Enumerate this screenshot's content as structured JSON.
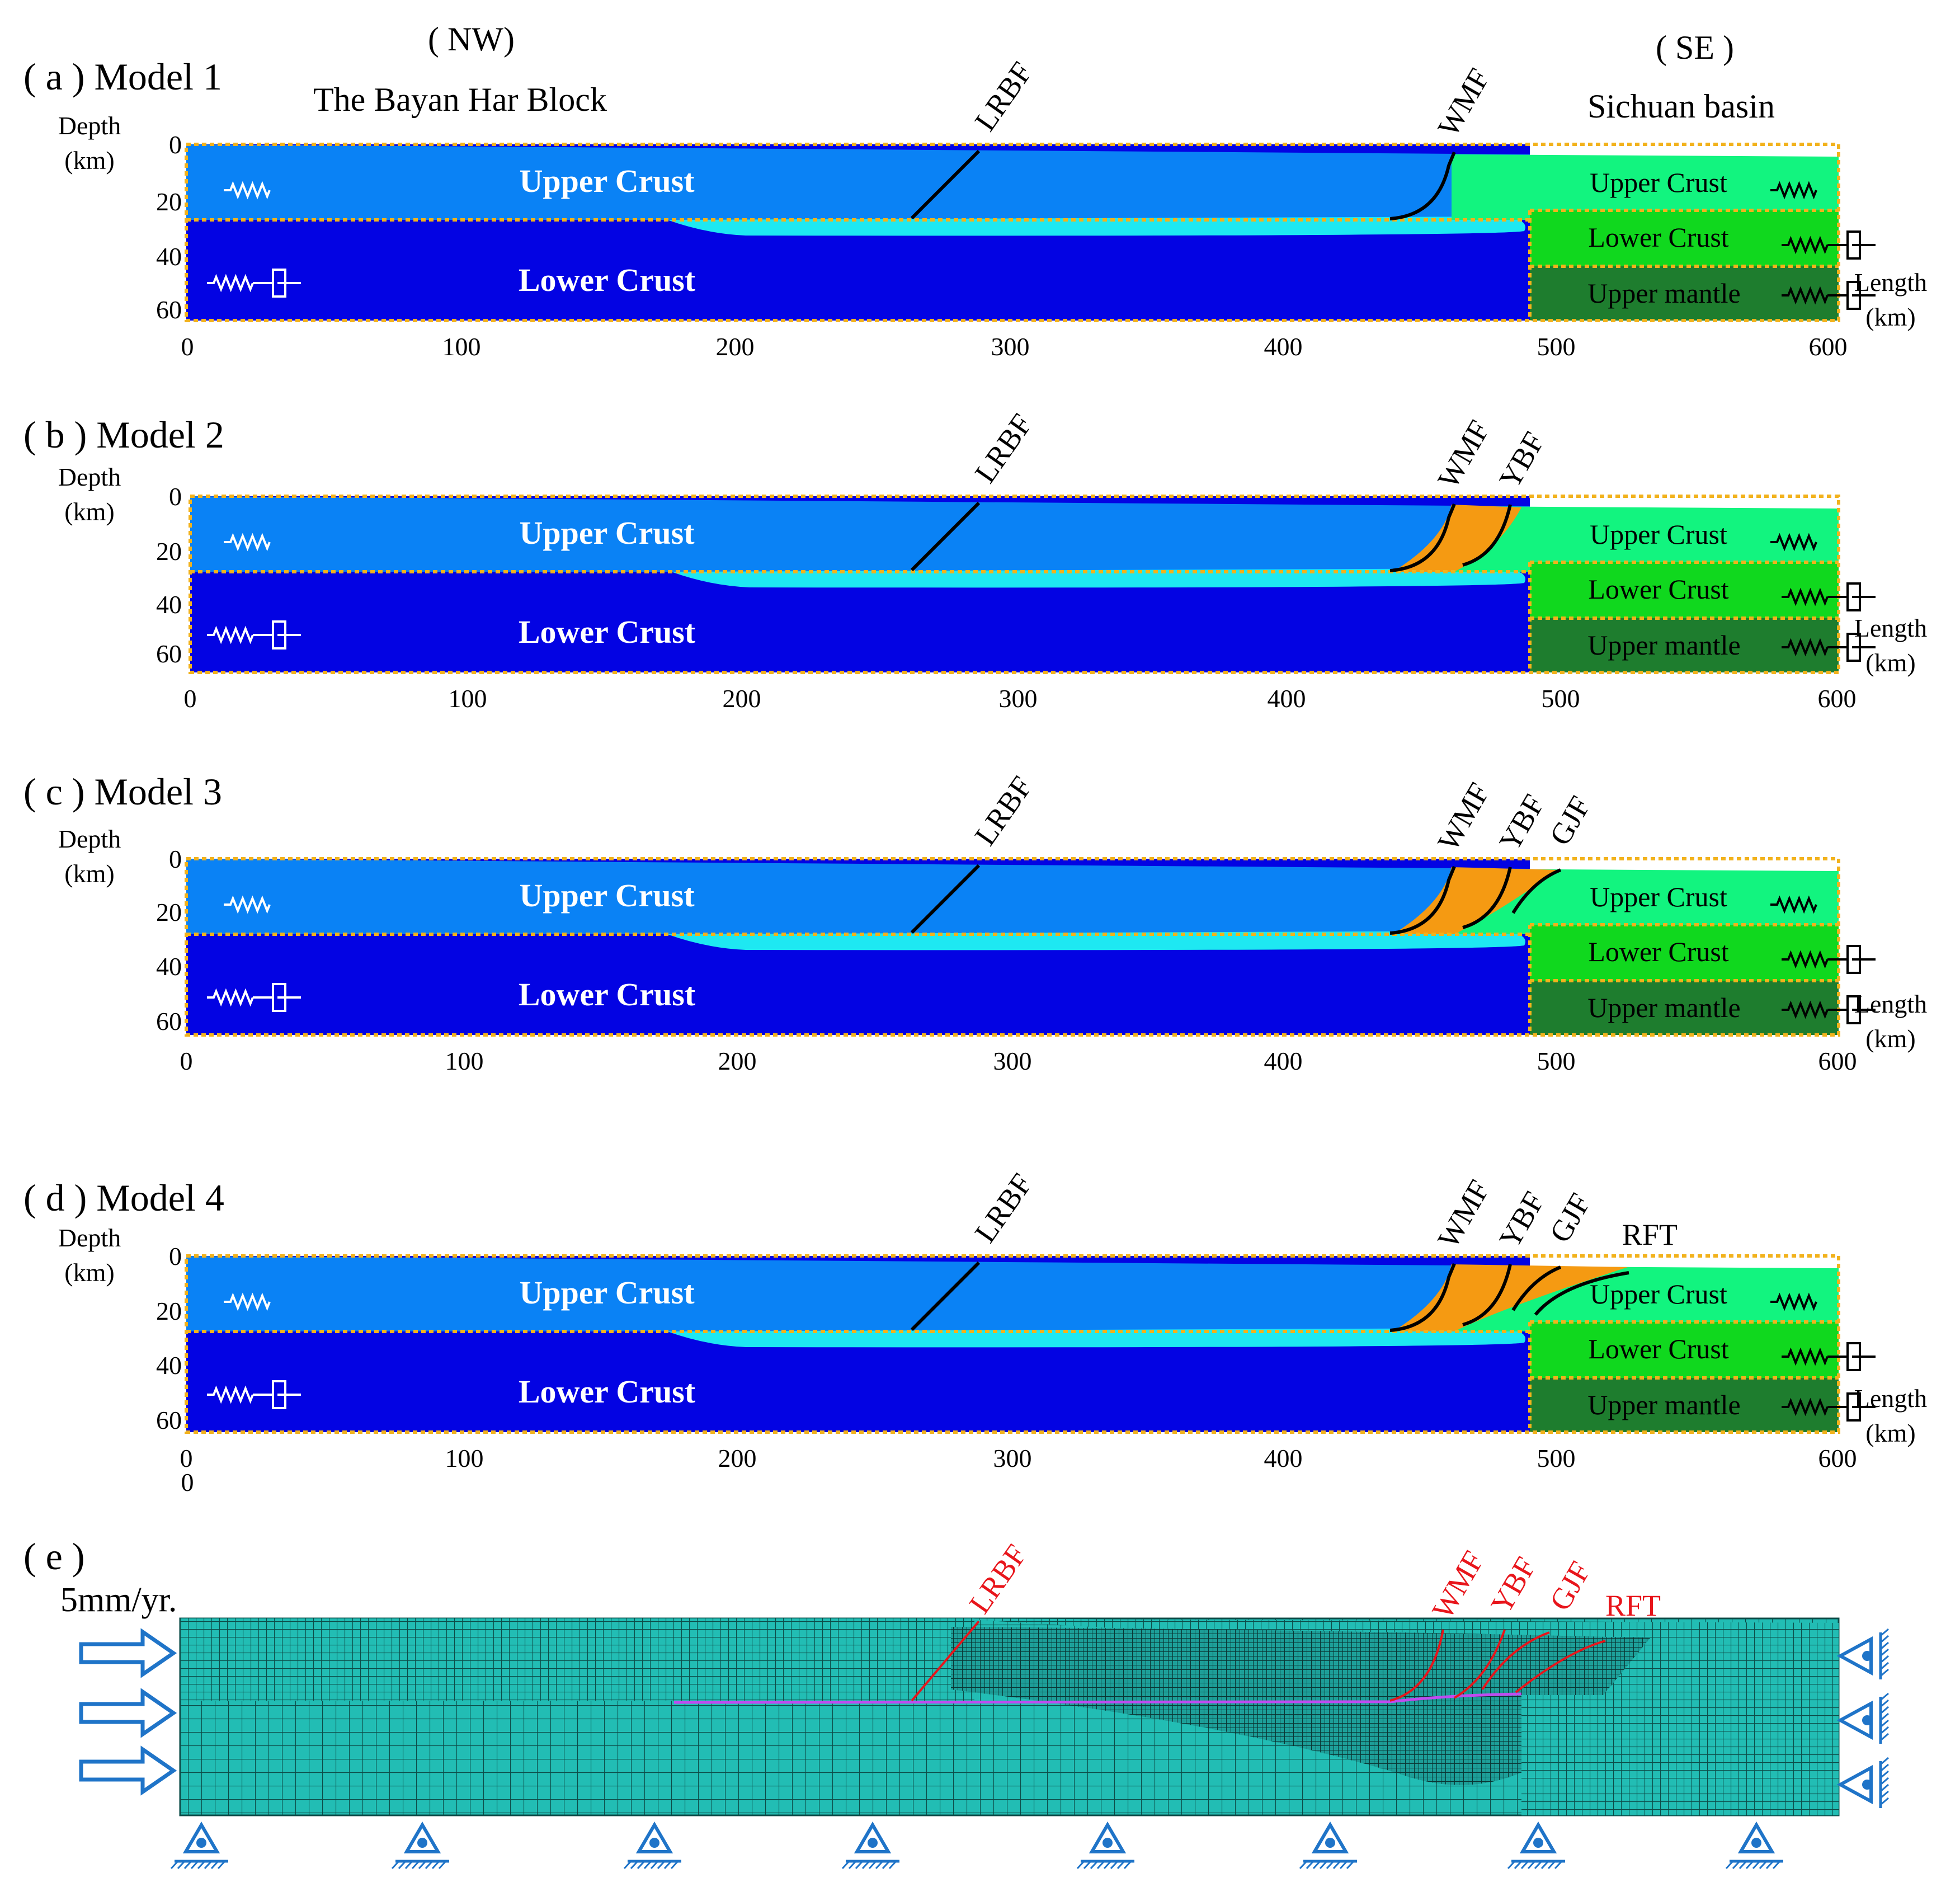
{
  "figure": {
    "orientation": {
      "nw": "( NW)",
      "se": "( SE )"
    },
    "regions": {
      "left": "The Bayan Har Block",
      "right": "Sichuan basin"
    },
    "axis": {
      "depth_title": [
        "Depth",
        "(km)"
      ],
      "length_title": [
        "Length",
        "(km)"
      ],
      "depth_ticks": [
        "0",
        "20",
        "40",
        "60"
      ],
      "length_ticks": [
        "0",
        "100",
        "200",
        "300",
        "400",
        "500",
        "600"
      ]
    },
    "colors": {
      "upper_crust_nw": "#0a82f5",
      "lower_crust_nw": "#0303e3",
      "weak_layer": "#1ee8f2",
      "upper_crust_se": "#12f47f",
      "lower_crust_se": "#10d81e",
      "upper_mantle_se": "#1e7d2e",
      "fault_zone": "#f59a12",
      "boundary": "#f2b21c",
      "mesh": "#1fb8b0",
      "arrow": "#1f74c8",
      "fault_mesh": "#e8151b"
    },
    "panels": [
      {
        "title": "( a ) Model 1",
        "layers": {
          "upper_nw": "Upper Crust",
          "lower_nw": "Lower Crust",
          "upper_se": "Upper Crust",
          "lower_se": "Lower Crust",
          "mantle_se": "Upper mantle"
        },
        "faults": [
          "LRBF",
          "WMF"
        ]
      },
      {
        "title": "( b ) Model 2",
        "layers": {
          "upper_nw": "Upper Crust",
          "lower_nw": "Lower Crust",
          "upper_se": "Upper Crust",
          "lower_se": "Lower Crust",
          "mantle_se": "Upper mantle"
        },
        "faults": [
          "LRBF",
          "WMF",
          "YBF"
        ]
      },
      {
        "title": "( c ) Model 3",
        "layers": {
          "upper_nw": "Upper Crust",
          "lower_nw": "Lower Crust",
          "upper_se": "Upper Crust",
          "lower_se": "Lower Crust",
          "mantle_se": "Upper mantle"
        },
        "faults": [
          "LRBF",
          "WMF",
          "YBF",
          "GJF"
        ]
      },
      {
        "title": "( d ) Model 4",
        "layers": {
          "upper_nw": "Upper Crust",
          "lower_nw": "Lower Crust",
          "upper_se": "Upper Crust",
          "lower_se": "Lower Crust",
          "mantle_se": "Upper mantle"
        },
        "faults": [
          "LRBF",
          "WMF",
          "YBF",
          "GJF",
          "RFT"
        ]
      }
    ],
    "panel_e": {
      "title": "( e )",
      "velocity": "5mm/yr.",
      "faults": [
        "LRBF",
        "WMF",
        "YBF",
        "GJF",
        "RFT"
      ]
    }
  }
}
